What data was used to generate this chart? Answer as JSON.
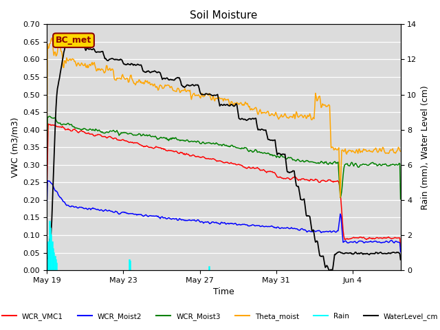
{
  "title": "Soil Moisture",
  "xlabel": "Time",
  "ylabel_left": "VWC (m3/m3)",
  "ylabel_right": "Rain (mm), Water Level (cm)",
  "ylim_left": [
    0.0,
    0.7
  ],
  "ylim_right": [
    0,
    14
  ],
  "yticks_left": [
    0.0,
    0.05,
    0.1,
    0.15,
    0.2,
    0.25,
    0.3,
    0.35,
    0.4,
    0.45,
    0.5,
    0.55,
    0.6,
    0.65,
    0.7
  ],
  "yticks_right": [
    0,
    2,
    4,
    6,
    8,
    10,
    12,
    14
  ],
  "bg_color": "#dcdcdc",
  "annotation_text": "BC_met",
  "annotation_color": "#8B0000",
  "annotation_bg": "#FFD700",
  "xtick_vals": [
    0,
    4,
    8,
    12,
    16
  ],
  "xtick_labels": [
    "May 19",
    "May 23",
    "May 27",
    "May 31",
    "Jun 4"
  ],
  "xlim": [
    0,
    18.5
  ],
  "n_points": 500,
  "total_days": 18.5,
  "line_colors": {
    "WCR_VMC1": "red",
    "WCR_Moist2": "blue",
    "WCR_Moist3": "green",
    "Theta_moist": "orange",
    "Rain": "cyan",
    "WaterLevel_cm": "black"
  }
}
